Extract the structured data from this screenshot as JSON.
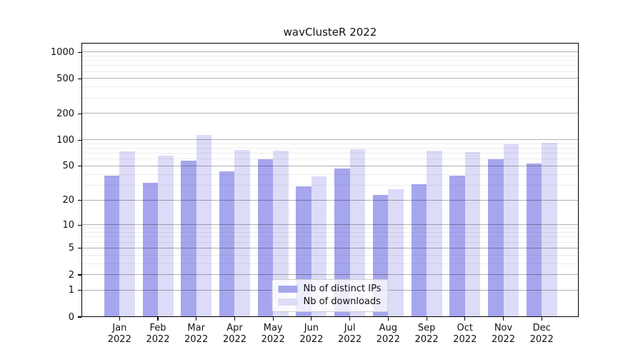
{
  "chart_data": {
    "type": "bar",
    "title": "wavClusteR 2022",
    "categories": [
      "Jan",
      "Feb",
      "Mar",
      "Apr",
      "May",
      "Jun",
      "Jul",
      "Aug",
      "Sep",
      "Oct",
      "Nov",
      "Dec"
    ],
    "x_year_label": "2022",
    "series": [
      {
        "name": "Nb of distinct IPs",
        "color": "#a6a6ee",
        "values": [
          39,
          32,
          58,
          44,
          60,
          29,
          47,
          23,
          31,
          39,
          60,
          54
        ]
      },
      {
        "name": "Nb of downloads",
        "color": "#dcdcf8",
        "values": [
          74,
          66,
          115,
          77,
          76,
          38,
          79,
          27,
          76,
          73,
          90,
          93
        ]
      }
    ],
    "y_axis": {
      "scale": "log1p",
      "ticks": [
        0,
        1,
        2,
        5,
        10,
        20,
        50,
        100,
        200,
        500,
        1000
      ],
      "minor_ticks": [
        3,
        4,
        6,
        7,
        8,
        9,
        30,
        40,
        60,
        70,
        80,
        90,
        300,
        400,
        600,
        700,
        800,
        900
      ],
      "top_value": 1276
    },
    "legend_position": "lower center",
    "grid": true,
    "colors": {
      "major_grid": "#b3b3b3",
      "minor_grid": "#ececec",
      "axis": "#000000",
      "background": "#ffffff"
    }
  }
}
